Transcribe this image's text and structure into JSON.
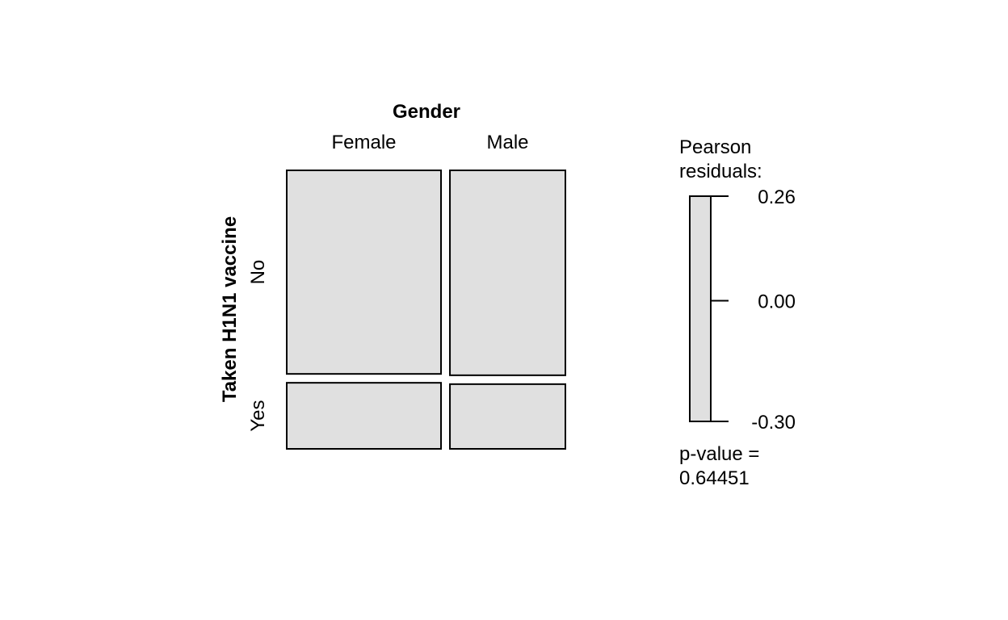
{
  "chart_data": {
    "type": "mosaic",
    "column_variable": "Gender",
    "row_variable": "Taken H1N1 vaccine",
    "columns": [
      "Female",
      "Male"
    ],
    "rows": [
      "No",
      "Yes"
    ],
    "column_proportions": [
      0.572,
      0.428
    ],
    "row_proportions_within_column": [
      [
        0.755,
        0.245
      ],
      [
        0.76,
        0.24
      ]
    ],
    "cell_fill": "#e0e0e0",
    "legend": {
      "title_line1": "Pearson",
      "title_line2": "residuals:",
      "range": [
        -0.3,
        0.26
      ],
      "ticks": [
        {
          "value": 0.26,
          "label": "0.26"
        },
        {
          "value": 0.0,
          "label": "0.00"
        },
        {
          "value": -0.3,
          "label": "-0.30"
        }
      ],
      "fill": "#e0e0e0"
    },
    "pvalue_label": "p-value =",
    "pvalue": "0.64451"
  }
}
